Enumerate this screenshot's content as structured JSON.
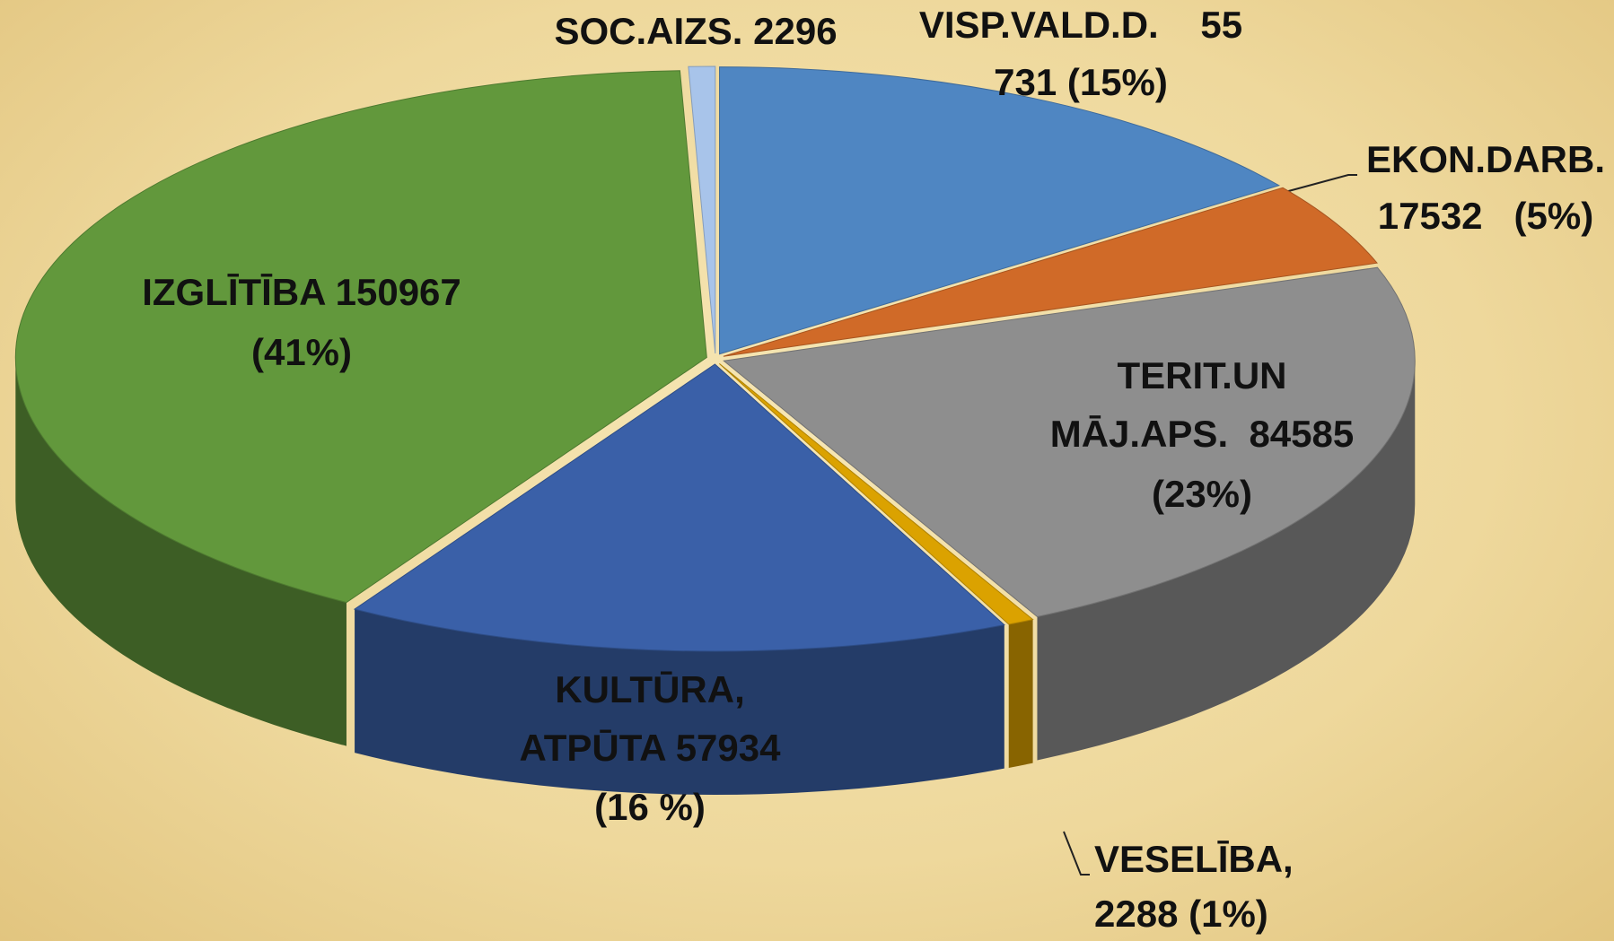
{
  "chart_data": {
    "type": "pie3d",
    "categories": [
      "VISP.VALD.D.",
      "EKON.DARB.",
      "TERIT.UN MĀJ.APS.",
      "VESELĪBA",
      "KULTŪRA, ATPŪTA",
      "IZGLĪTĪBA",
      "SOC.AIZS."
    ],
    "values": [
      55731,
      17532,
      84585,
      2288,
      57934,
      150967,
      2296
    ],
    "labels": [
      [
        "VISP.VALD.D.    55",
        "731 (15%)"
      ],
      [
        "EKON.DARB.",
        "17532   (5%)"
      ],
      [
        "TERIT.UN",
        "MĀJ.APS.  84585",
        "(23%)"
      ],
      [
        "VESELĪBA,",
        "2288 (1%)"
      ],
      [
        "KULTŪRA,",
        "ATPŪTA 57934",
        "(16 %)"
      ],
      [
        "IZGLĪTĪBA 150967",
        "(41%)"
      ],
      [
        "SOC.AIZS. 2296"
      ]
    ],
    "colors": [
      "#4f86c2",
      "#d06a28",
      "#8e8e8e",
      "#dba200",
      "#3a60a8",
      "#62983c",
      "#a8c4ea"
    ]
  }
}
